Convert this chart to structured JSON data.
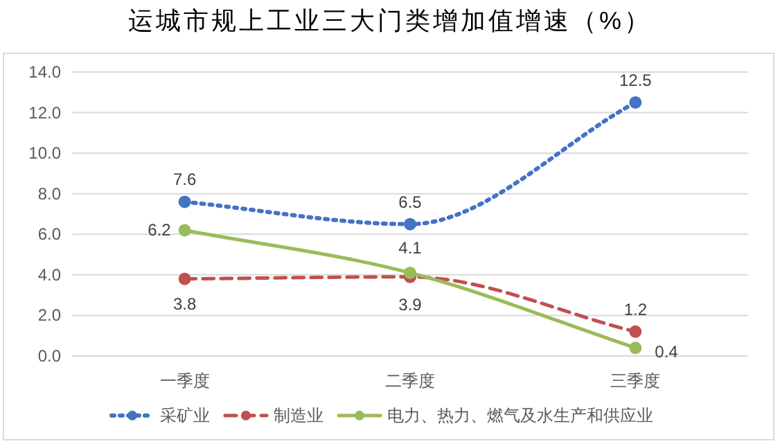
{
  "chart_data": {
    "type": "line",
    "title": "运城市规上工业三大门类增加值增速（%）",
    "categories": [
      "一季度",
      "二季度",
      "三季度"
    ],
    "series": [
      {
        "name": "采矿业",
        "color": "#4472c4",
        "line_style": "dotted",
        "values": [
          7.6,
          6.5,
          12.5
        ]
      },
      {
        "name": "制造业",
        "color": "#c0504d",
        "line_style": "dashed",
        "values": [
          3.8,
          3.9,
          1.2
        ]
      },
      {
        "name": "电力、热力、燃气及水生产和供应业",
        "color": "#9bbb59",
        "line_style": "solid",
        "values": [
          6.2,
          4.1,
          0.4
        ]
      }
    ],
    "ylim": [
      0,
      14
    ],
    "yticks": [
      {
        "value": 0,
        "label": "0.0"
      },
      {
        "value": 2,
        "label": "2.0"
      },
      {
        "value": 4,
        "label": "4.0"
      },
      {
        "value": 6,
        "label": "6.0"
      },
      {
        "value": 8,
        "label": "8.0"
      },
      {
        "value": 10,
        "label": "10.0"
      },
      {
        "value": 12,
        "label": "12.0"
      },
      {
        "value": 14,
        "label": "14.0"
      }
    ],
    "grid": "y",
    "legend": "bottom",
    "marker": "circle",
    "data_labels": true
  }
}
